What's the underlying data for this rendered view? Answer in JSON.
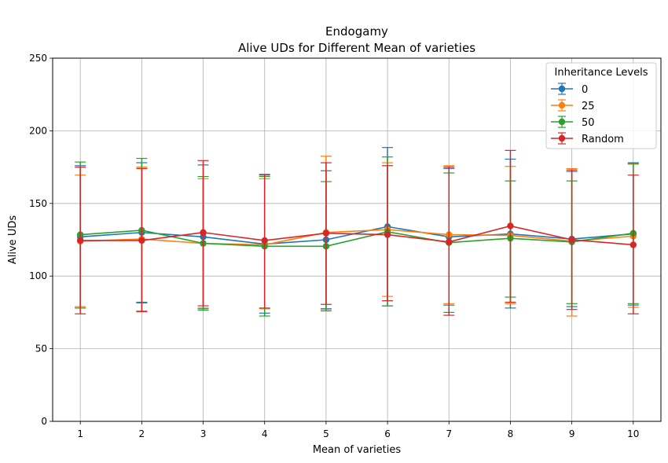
{
  "chart_data": {
    "type": "line",
    "title": "Endogamy",
    "subtitle": "Alive UDs for Different Mean of varieties",
    "xlabel": "Mean of varieties",
    "ylabel": "Alive UDs",
    "x": [
      1,
      2,
      3,
      4,
      5,
      6,
      7,
      8,
      9,
      10
    ],
    "ylim": [
      0,
      250
    ],
    "yticks": [
      0,
      50,
      100,
      150,
      200,
      250
    ],
    "grid": true,
    "legend": {
      "title": "Inheritance Levels",
      "placement": "top-right"
    },
    "series": [
      {
        "name": "0",
        "color": "#1f77b4",
        "values": [
          127.0,
          130.0,
          127.0,
          122.0,
          125.0,
          134.0,
          127.0,
          129.0,
          125.5,
          129.0
        ],
        "lower": [
          78.0,
          82.0,
          77.5,
          74.5,
          77.5,
          79.5,
          80.0,
          78.0,
          79.0,
          80.0
        ],
        "upper": [
          176.0,
          178.0,
          176.5,
          169.5,
          172.5,
          188.5,
          174.0,
          180.5,
          172.0,
          178.0
        ]
      },
      {
        "name": "25",
        "color": "#ff7f0e",
        "values": [
          124.0,
          125.5,
          122.5,
          121.5,
          130.0,
          132.0,
          128.5,
          128.0,
          124.0,
          127.5
        ],
        "lower": [
          79.0,
          76.0,
          78.0,
          77.5,
          77.0,
          86.0,
          81.0,
          81.0,
          72.5,
          78.5
        ],
        "upper": [
          169.5,
          175.0,
          167.0,
          167.0,
          182.5,
          178.0,
          176.0,
          175.5,
          174.0,
          177.0
        ]
      },
      {
        "name": "50",
        "color": "#2ca02c",
        "values": [
          128.5,
          131.5,
          122.5,
          120.5,
          120.5,
          130.5,
          123.0,
          126.0,
          123.5,
          129.5
        ],
        "lower": [
          78.0,
          81.5,
          76.5,
          72.5,
          76.0,
          79.5,
          75.0,
          85.5,
          81.0,
          81.0
        ],
        "upper": [
          178.5,
          181.0,
          168.5,
          168.5,
          165.0,
          182.0,
          171.0,
          165.5,
          165.5,
          177.5
        ]
      },
      {
        "name": "Random",
        "color": "#d62728",
        "values": [
          124.5,
          124.5,
          130.0,
          124.5,
          129.5,
          128.5,
          123.5,
          134.5,
          125.0,
          121.5
        ],
        "lower": [
          74.0,
          75.5,
          79.5,
          78.0,
          80.5,
          83.0,
          73.0,
          82.0,
          77.0,
          74.0
        ],
        "upper": [
          175.0,
          174.0,
          179.5,
          170.0,
          178.0,
          176.0,
          175.0,
          186.5,
          173.0,
          169.5
        ]
      }
    ]
  }
}
